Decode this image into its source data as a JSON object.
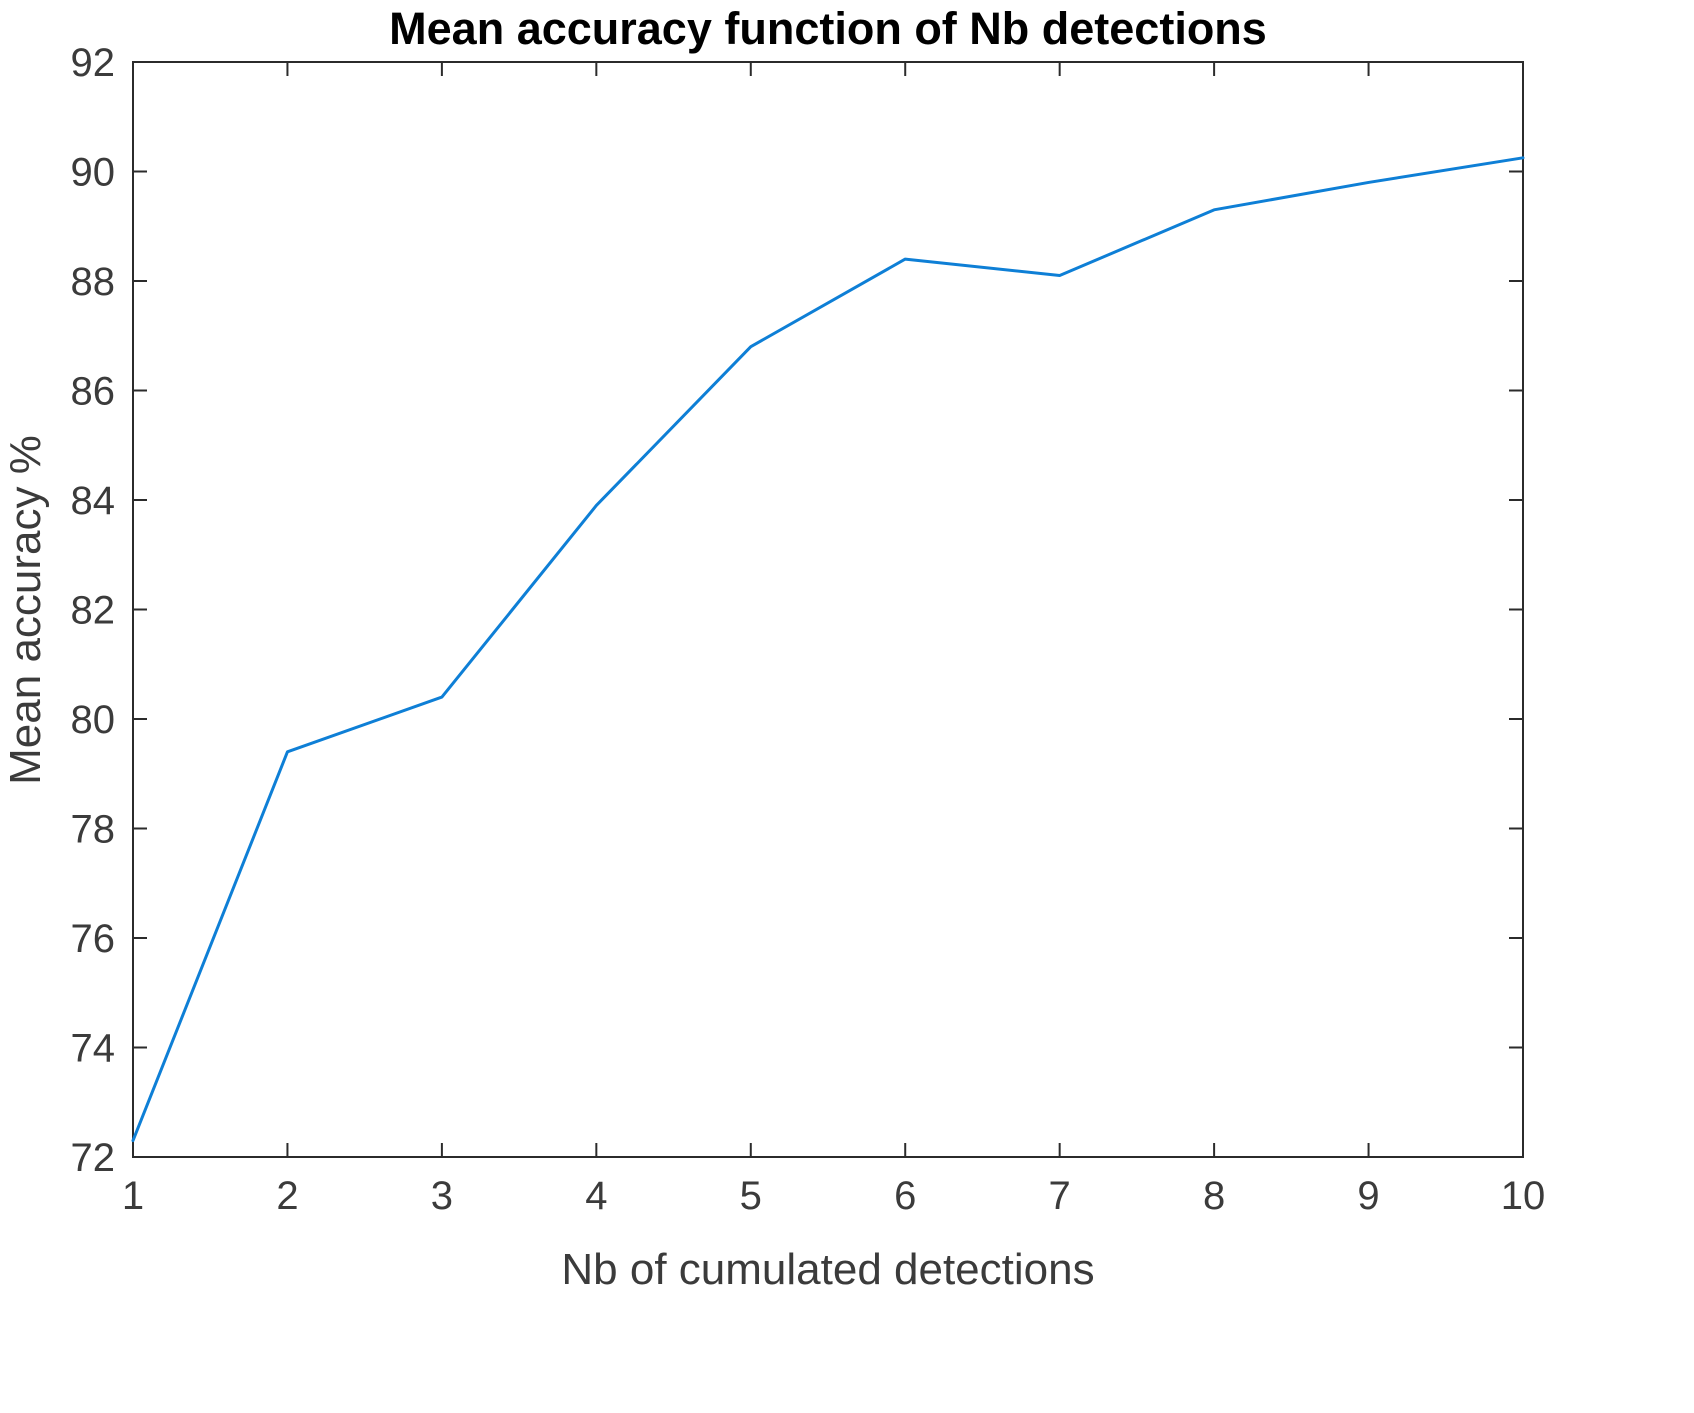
{
  "chart_data": {
    "type": "line",
    "title": "Mean accuracy function of Nb detections",
    "xlabel": "Nb of cumulated detections",
    "ylabel": "Mean accuracy %",
    "x": [
      1,
      2,
      3,
      4,
      5,
      6,
      7,
      8,
      9,
      10
    ],
    "y": [
      72.3,
      79.4,
      80.4,
      83.9,
      86.8,
      88.4,
      88.1,
      89.3,
      89.8,
      90.25
    ],
    "xlim": [
      1,
      10
    ],
    "ylim": [
      72,
      92
    ],
    "xticks": [
      1,
      2,
      3,
      4,
      5,
      6,
      7,
      8,
      9,
      10
    ],
    "yticks": [
      72,
      74,
      76,
      78,
      80,
      82,
      84,
      86,
      88,
      90,
      92
    ],
    "line_color": "#0e7fd6",
    "axis_color": "#2b2b2b",
    "grid": false,
    "legend": null
  }
}
